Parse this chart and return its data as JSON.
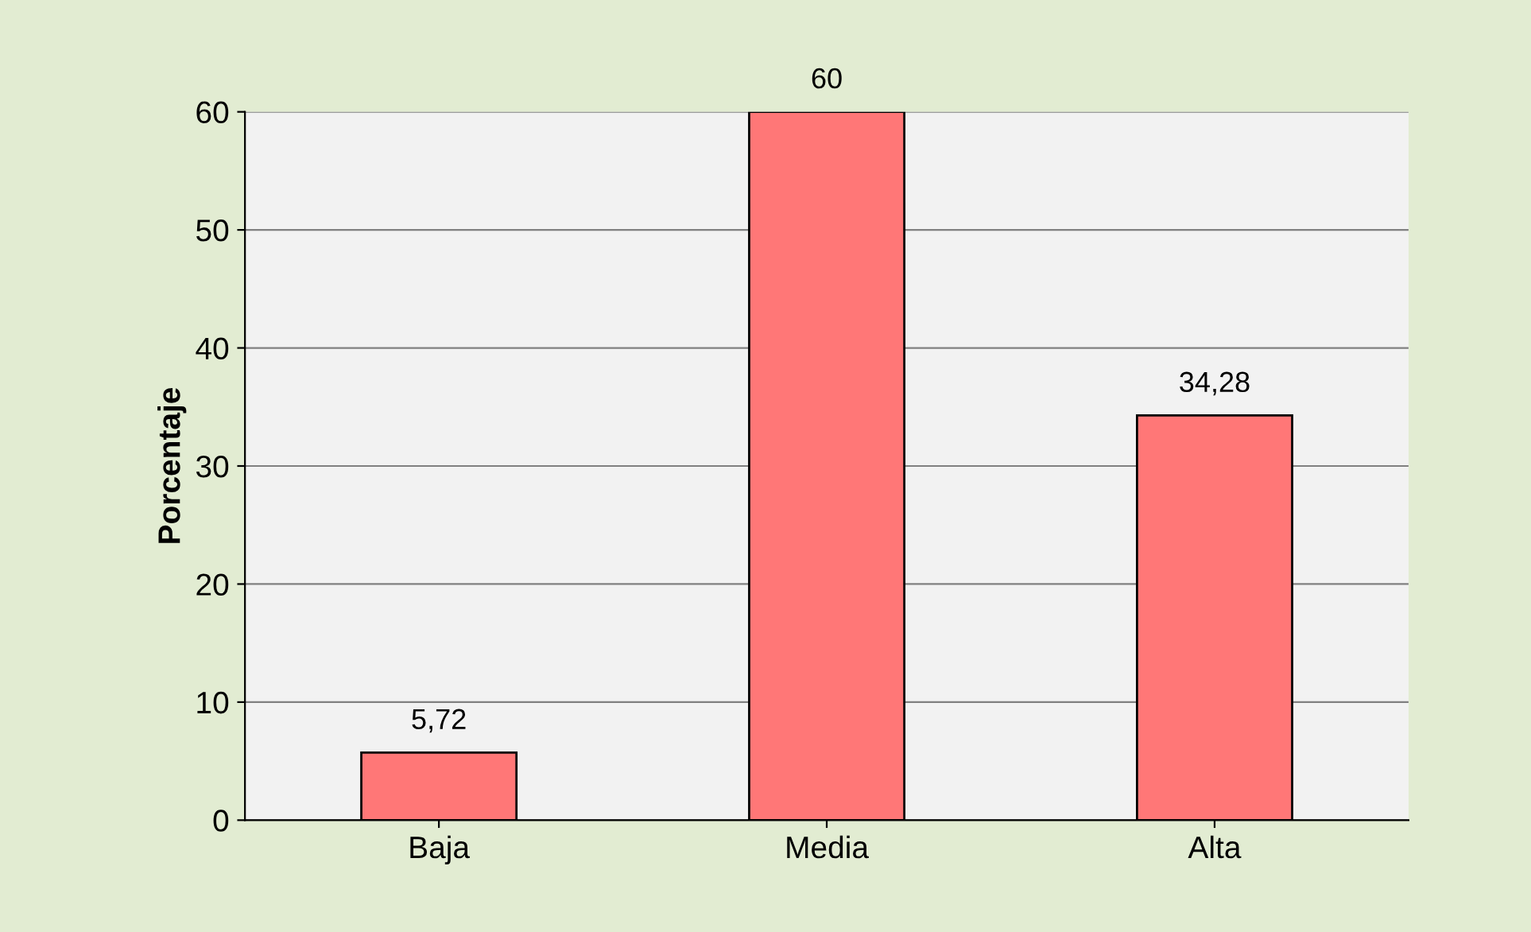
{
  "chart_data": {
    "type": "bar",
    "ylabel": "Porcentaje",
    "categories": [
      "Baja",
      "Media",
      "Alta"
    ],
    "values": [
      5.72,
      60,
      34.28
    ],
    "value_labels": [
      "5,72",
      "60",
      "34,28"
    ],
    "color": "#ff7777",
    "ylim": [
      0,
      60
    ],
    "yticks": [
      0,
      10,
      20,
      30,
      40,
      50,
      60
    ],
    "grid": "y"
  }
}
